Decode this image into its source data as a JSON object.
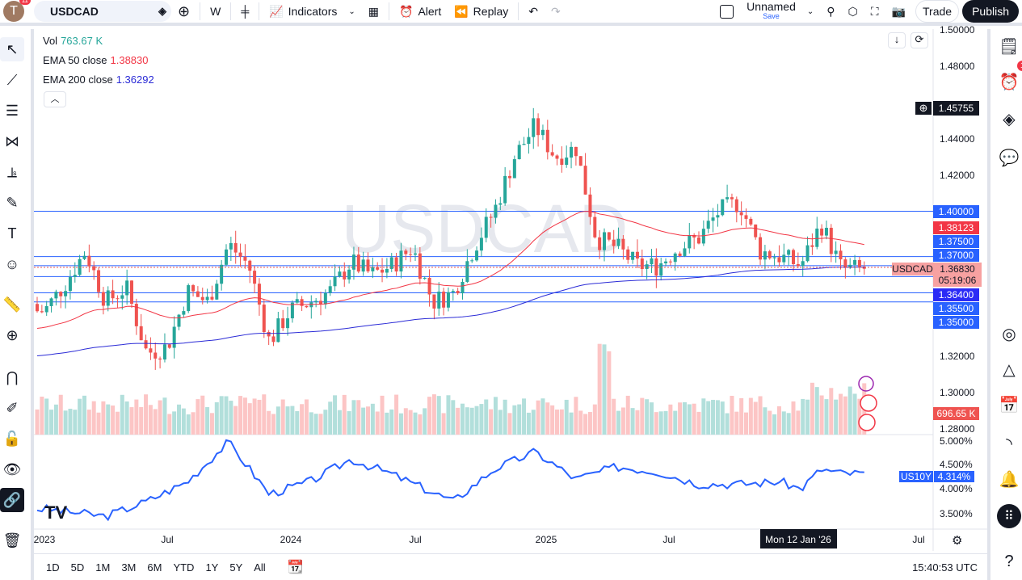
{
  "topbar": {
    "avatar_letter": "T",
    "notif_count": "11",
    "symbol": "USDCAD",
    "interval": "W",
    "indicators": "Indicators",
    "alert": "Alert",
    "replay": "Replay",
    "layout_name": "Unnamed",
    "layout_status": "Save",
    "trade": "Trade",
    "publish": "Publish"
  },
  "legend": {
    "vol_label": "Vol",
    "vol_value": "763.67 K",
    "ema50_label": "EMA 50 close",
    "ema50_value": "1.38830",
    "ema200_label": "EMA 200 close",
    "ema200_value": "1.36292"
  },
  "watermark": "USDCAD",
  "colors": {
    "up": "#26a69a",
    "down": "#ef5350",
    "ema50": "#f23645",
    "ema200": "#2b2bd6",
    "hline": "#2962ff",
    "us10y": "#2962ff",
    "publish_bg": "#131722"
  },
  "price_axis": {
    "ticks": [
      "1.50000",
      "1.48000",
      "1.44000",
      "1.42000",
      "1.32000",
      "1.30000",
      "1.28000"
    ],
    "labels": {
      "crosshair": "1.45755",
      "l1400": "1.40000",
      "ema50": "1.38123",
      "l1375": "1.37500",
      "l1370": "1.37000",
      "last": "1.36830",
      "countdown": "05:19:06",
      "symbol_tag": "USDCAD",
      "l1364": "1.36400",
      "l1355": "1.35500",
      "l1350": "1.35000",
      "volume": "696.65 K"
    }
  },
  "us10y_axis": {
    "ticks": [
      "5.000%",
      "4.500%",
      "4.000%",
      "3.500%"
    ],
    "tag": "US10Y",
    "value": "4.314%"
  },
  "time_axis": {
    "ticks": [
      "2023",
      "Jul",
      "2024",
      "Jul",
      "2025",
      "Jul",
      "Jul"
    ],
    "crosshair": "Mon 12 Jan '26"
  },
  "bottombar": {
    "ranges": [
      "1D",
      "5D",
      "1M",
      "3M",
      "6M",
      "YTD",
      "1Y",
      "5Y",
      "All"
    ],
    "time": "15:40:53 UTC"
  },
  "rightbar": {
    "alerts_badge": "1"
  },
  "chart_data": {
    "type": "candlestick",
    "symbol": "USDCAD",
    "interval": "weekly",
    "price_range": [
      1.28,
      1.5
    ],
    "horizontal_lines": [
      1.4,
      1.375,
      1.37,
      1.364,
      1.355,
      1.35
    ],
    "close_path": [
      [
        "2023-01",
        1.345
      ],
      [
        "2023-02",
        1.36
      ],
      [
        "2023-03",
        1.378
      ],
      [
        "2023-04",
        1.35
      ],
      [
        "2023-05",
        1.358
      ],
      [
        "2023-06",
        1.322
      ],
      [
        "2023-07",
        1.325
      ],
      [
        "2023-08",
        1.356
      ],
      [
        "2023-09",
        1.35
      ],
      [
        "2023-10",
        1.382
      ],
      [
        "2023-11",
        1.37
      ],
      [
        "2023-12",
        1.328
      ],
      [
        "2024-01",
        1.345
      ],
      [
        "2024-02",
        1.35
      ],
      [
        "2024-03",
        1.356
      ],
      [
        "2024-04",
        1.372
      ],
      [
        "2024-05",
        1.365
      ],
      [
        "2024-06",
        1.37
      ],
      [
        "2024-07",
        1.38
      ],
      [
        "2024-08",
        1.35
      ],
      [
        "2024-09",
        1.355
      ],
      [
        "2024-10",
        1.38
      ],
      [
        "2024-11",
        1.4
      ],
      [
        "2024-12",
        1.43
      ],
      [
        "2025-01",
        1.447
      ],
      [
        "2025-02",
        1.43
      ],
      [
        "2025-03",
        1.435
      ],
      [
        "2025-04",
        1.385
      ],
      [
        "2025-05",
        1.38
      ],
      [
        "2025-06",
        1.37
      ],
      [
        "2025-07",
        1.37
      ],
      [
        "2025-08",
        1.38
      ],
      [
        "2025-09",
        1.385
      ],
      [
        "2025-10",
        1.4
      ],
      [
        "2025-11",
        1.405
      ],
      [
        "2025-12",
        1.378
      ],
      [
        "2026-01",
        1.375
      ],
      [
        "2026-02",
        1.37
      ],
      [
        "2026-03",
        1.393
      ],
      [
        "2026-04",
        1.368
      ]
    ],
    "us10y_path": [
      [
        "2023-01",
        3.6
      ],
      [
        "2023-04",
        3.45
      ],
      [
        "2023-06",
        3.75
      ],
      [
        "2023-08",
        4.15
      ],
      [
        "2023-10",
        4.95
      ],
      [
        "2023-12",
        3.9
      ],
      [
        "2024-02",
        4.15
      ],
      [
        "2024-04",
        4.6
      ],
      [
        "2024-06",
        4.3
      ],
      [
        "2024-09",
        3.75
      ],
      [
        "2024-11",
        4.4
      ],
      [
        "2025-01",
        4.75
      ],
      [
        "2025-03",
        4.2
      ],
      [
        "2025-05",
        4.45
      ],
      [
        "2025-07",
        4.35
      ],
      [
        "2025-09",
        4.1
      ],
      [
        "2025-11",
        4.1
      ],
      [
        "2026-01",
        4.15
      ],
      [
        "2026-02",
        4.0
      ],
      [
        "2026-03",
        4.4
      ],
      [
        "2026-04",
        4.314
      ]
    ],
    "us10y_range": [
      3.3,
      5.1
    ]
  }
}
